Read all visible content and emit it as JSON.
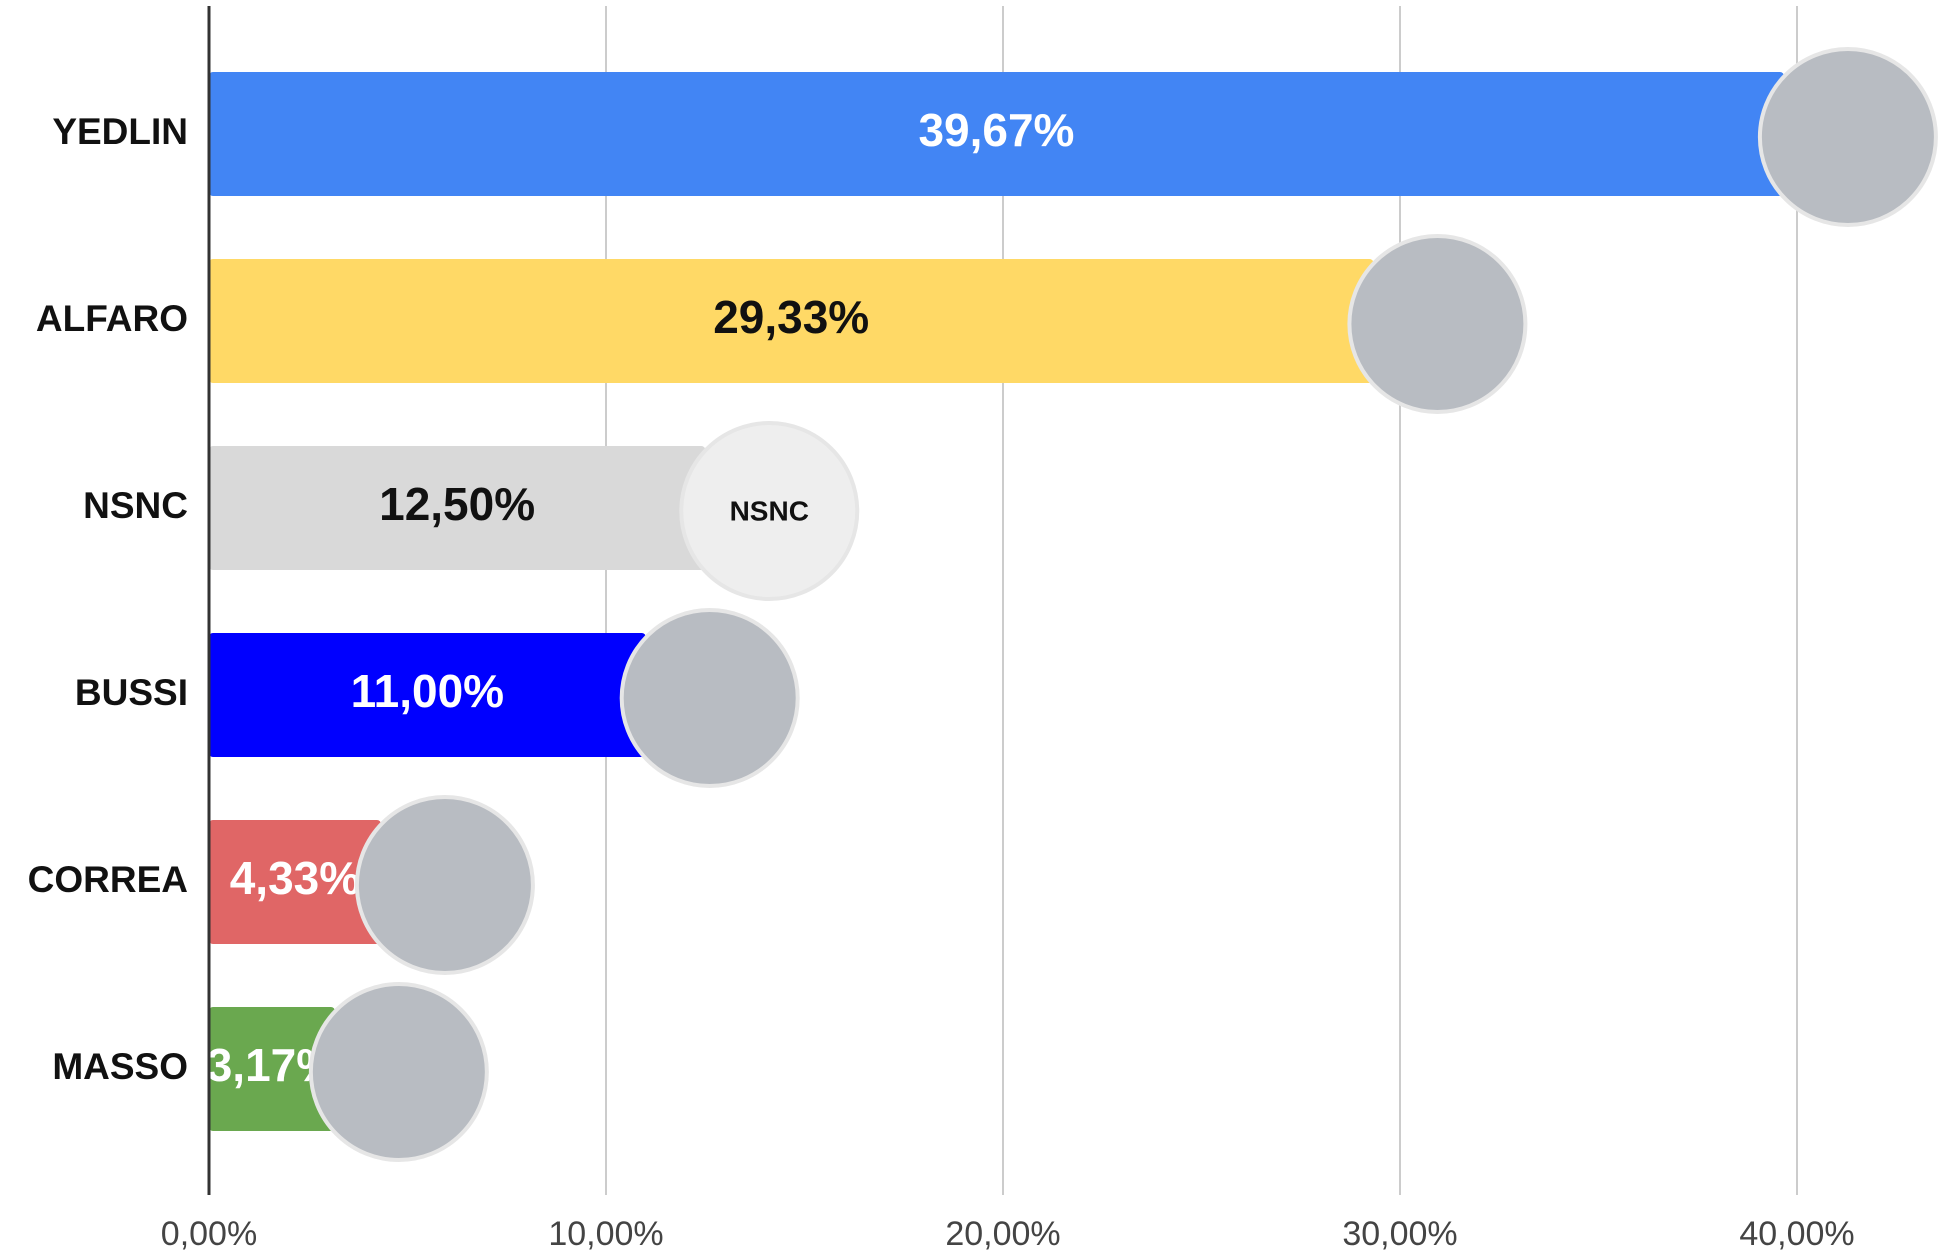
{
  "chart_data": {
    "type": "hbar",
    "categories": [
      "YEDLIN",
      "ALFARO",
      "NSNC",
      "BUSSI",
      "CORREA",
      "MASSO"
    ],
    "values": [
      39.67,
      29.33,
      12.5,
      11.0,
      4.33,
      3.17
    ],
    "value_labels": [
      "39,67%",
      "29,33%",
      "12,50%",
      "11,00%",
      "4,33%",
      "3,17%"
    ],
    "colors": [
      "#4285f4",
      "#ffd966",
      "#d9d9d9",
      "#0000ff",
      "#e06666",
      "#6aa84f"
    ],
    "xlim": [
      0,
      43.5
    ],
    "xticks": [
      {
        "value": 0,
        "label": "0,00%"
      },
      {
        "value": 10,
        "label": "10,00%"
      },
      {
        "value": 20,
        "label": "20,00%"
      },
      {
        "value": 30,
        "label": "30,00%"
      },
      {
        "value": 40,
        "label": "40,00%"
      }
    ],
    "grid": true
  }
}
